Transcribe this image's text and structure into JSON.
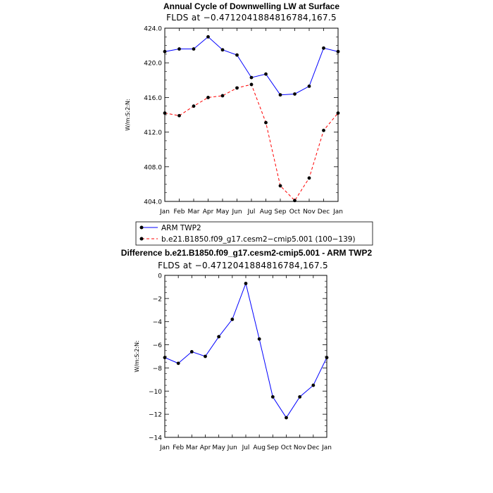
{
  "chart_data": [
    {
      "type": "line",
      "title": "Annual Cycle of Downwelling LW at Surface",
      "subtitle": "FLDS at  −0.4712041884816784,167.5",
      "xlabel": "",
      "ylabel": "W/m:S:2:N:",
      "categories": [
        "Jan",
        "Feb",
        "Mar",
        "Apr",
        "May",
        "Jun",
        "Jul",
        "Aug",
        "Sep",
        "Oct",
        "Nov",
        "Dec",
        "Jan"
      ],
      "ylim": [
        404,
        424
      ],
      "yticks": [
        404,
        408,
        412,
        416,
        420,
        424
      ],
      "ytick_labels": [
        "404.0",
        "408.0",
        "412.0",
        "416.0",
        "420.0",
        "424.0"
      ],
      "grid": false,
      "series": [
        {
          "name": "ARM TWP2",
          "color": "#0000ff",
          "dash": "solid",
          "values": [
            421.3,
            421.6,
            421.6,
            423.0,
            421.5,
            420.9,
            418.3,
            418.7,
            416.3,
            416.4,
            417.3,
            421.7,
            421.3
          ]
        },
        {
          "name": "b.e21.B1850.f09_g17.cesm2-cmip5.001 (100-139)",
          "color": "#ff0000",
          "dash": "dashed",
          "values": [
            414.2,
            413.9,
            415.0,
            416.0,
            416.2,
            417.1,
            417.5,
            413.1,
            405.8,
            404.1,
            406.7,
            412.2,
            414.2
          ]
        }
      ],
      "legend": {
        "placement": "bottom",
        "entries": [
          "ARM TWP2",
          "b.e21.B1850.f09_g17.cesm2−cmip5.001 (100−139)"
        ]
      }
    },
    {
      "type": "line",
      "title": "Difference b.e21.B1850.f09_g17.cesm2-cmip5.001 - ARM TWP2",
      "subtitle": "FLDS at  −0.4712041884816784,167.5",
      "xlabel": "",
      "ylabel": "W/m:S:2:N:",
      "categories": [
        "Jan",
        "Feb",
        "Mar",
        "Apr",
        "May",
        "Jun",
        "Jul",
        "Aug",
        "Sep",
        "Oct",
        "Nov",
        "Dec",
        "Jan"
      ],
      "ylim": [
        -14,
        0
      ],
      "yticks": [
        -14,
        -12,
        -10,
        -8,
        -6,
        -4,
        -2,
        0
      ],
      "ytick_labels": [
        "−14",
        "−12",
        "−10",
        "−8",
        "−6",
        "−4",
        "−2",
        "0"
      ],
      "grid": false,
      "series": [
        {
          "color": "#0000ff",
          "dash": "solid",
          "values": [
            -7.1,
            -7.6,
            -6.6,
            -7.0,
            -5.3,
            -3.8,
            -0.7,
            -5.5,
            -10.5,
            -12.3,
            -10.5,
            -9.5,
            -7.1
          ]
        }
      ]
    }
  ]
}
